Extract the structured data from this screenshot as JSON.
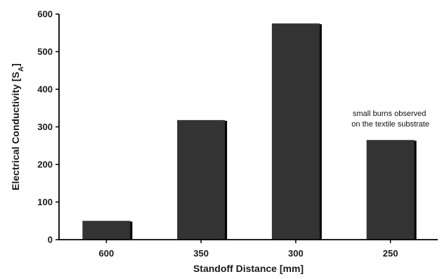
{
  "chart_data": {
    "type": "bar",
    "categories": [
      "600",
      "350",
      "300",
      "250"
    ],
    "values": [
      50,
      318,
      575,
      265
    ],
    "ylim": [
      0,
      600
    ],
    "yticks": [
      0,
      100,
      200,
      300,
      400,
      500,
      600
    ],
    "xlabel": "Standoff Distance [mm]",
    "ylabel": {
      "main": "Electrical Conductivity [S",
      "sub": "A",
      "close": "]"
    },
    "annotation": {
      "category_index": 3,
      "lines": [
        "small burns observed",
        "on the textile substrate"
      ]
    },
    "grid": false,
    "colors": {
      "bar": "#333333",
      "bar_shadow": "#000000",
      "axis": "#000000"
    }
  }
}
